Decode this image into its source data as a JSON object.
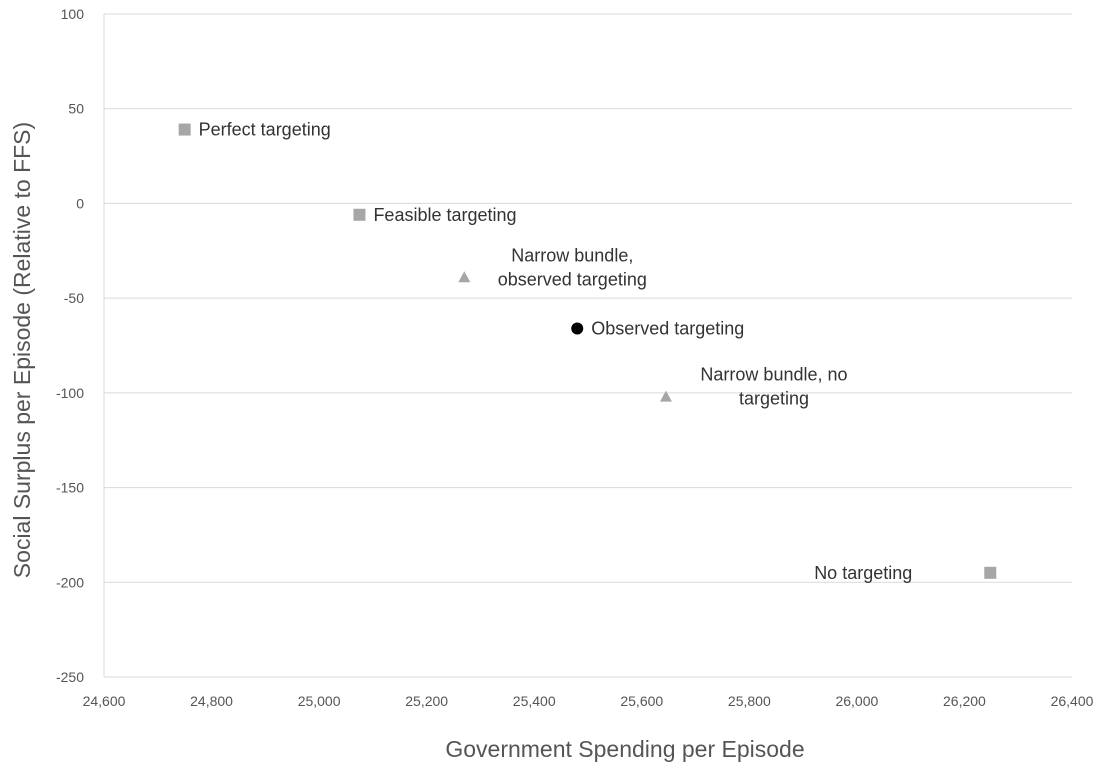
{
  "chart_data": {
    "type": "scatter",
    "xlabel": "Government Spending per Episode",
    "ylabel": "Social Surplus per Episode (Relative to FFS)",
    "xlim": [
      24600,
      26400
    ],
    "ylim": [
      -250,
      100
    ],
    "x_ticks": [
      24600,
      24800,
      25000,
      25200,
      25400,
      25600,
      25800,
      26000,
      26200,
      26400
    ],
    "y_ticks": [
      100,
      50,
      0,
      -50,
      -100,
      -150,
      -200,
      -250
    ],
    "x_tick_labels": [
      "24,600",
      "24,800",
      "25,000",
      "25,200",
      "25,400",
      "25,600",
      "25,800",
      "26,000",
      "26,200",
      "26,400"
    ],
    "y_tick_labels": [
      "100",
      "50",
      "0",
      "-50",
      "-100",
      "-150",
      "-200",
      "-250"
    ],
    "grid": "horizontal",
    "colors": {
      "gray_marker": "#a6a6a6",
      "black_marker": "#000000",
      "grid": "#d9d9d9"
    },
    "points": [
      {
        "id": "perfect-targeting",
        "label_lines": [
          "Perfect targeting"
        ],
        "x": 24750,
        "y": 39,
        "marker": "square",
        "color": "#a6a6a6",
        "label_side": "right",
        "label_align": "start"
      },
      {
        "id": "feasible-targeting",
        "label_lines": [
          "Feasible targeting"
        ],
        "x": 25075,
        "y": -6,
        "marker": "square",
        "color": "#a6a6a6",
        "label_side": "right",
        "label_align": "start"
      },
      {
        "id": "narrow-bundle-observed",
        "label_lines": [
          "Narrow bundle,",
          "observed targeting"
        ],
        "x": 25270,
        "y": -39,
        "marker": "triangle",
        "color": "#a6a6a6",
        "label_side": "above-right",
        "label_align": "middle"
      },
      {
        "id": "observed-targeting",
        "label_lines": [
          "Observed targeting"
        ],
        "x": 25480,
        "y": -66,
        "marker": "circle",
        "color": "#000000",
        "label_side": "right",
        "label_align": "start"
      },
      {
        "id": "narrow-bundle-no-targeting",
        "label_lines": [
          "Narrow bundle, no",
          "targeting"
        ],
        "x": 25645,
        "y": -102,
        "marker": "triangle",
        "color": "#a6a6a6",
        "label_side": "above-right",
        "label_align": "middle"
      },
      {
        "id": "no-targeting",
        "label_lines": [
          "No targeting"
        ],
        "x": 26248,
        "y": -195,
        "marker": "square",
        "color": "#a6a6a6",
        "label_side": "left",
        "label_align": "end"
      }
    ]
  }
}
